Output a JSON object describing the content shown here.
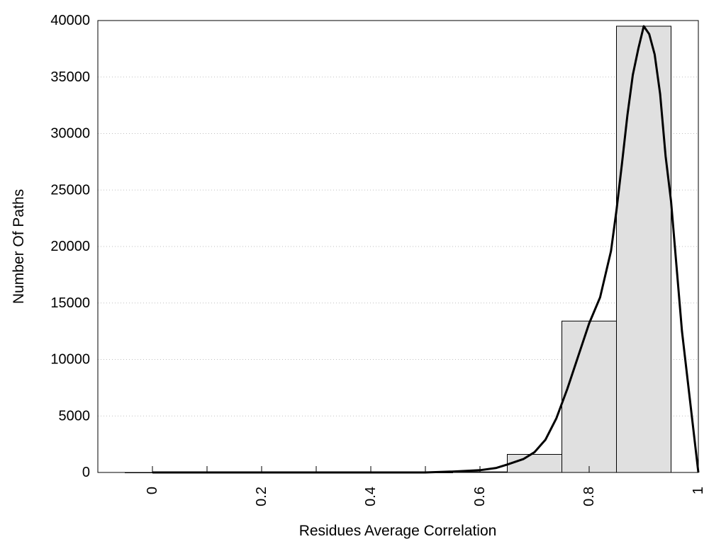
{
  "chart_data": {
    "type": "bar",
    "title": "",
    "xlabel": "Residues Average Correlation",
    "ylabel": "Number Of Paths",
    "xlim": [
      -0.1,
      1.0
    ],
    "ylim": [
      0,
      40000
    ],
    "xticks": [
      "0",
      "0.2",
      "0.4",
      "0.6",
      "0.8",
      "1"
    ],
    "xtick_values": [
      0,
      0.2,
      0.4,
      0.6,
      0.8,
      1
    ],
    "yticks": [
      "0",
      "5000",
      "10000",
      "15000",
      "20000",
      "25000",
      "30000",
      "35000",
      "40000"
    ],
    "ytick_values": [
      0,
      5000,
      10000,
      15000,
      20000,
      25000,
      30000,
      35000,
      40000
    ],
    "minor_xticks": [
      0.1,
      0.3,
      0.5
    ],
    "grid": {
      "y": true,
      "x": false,
      "style": "dotted"
    },
    "bin_width": 0.1,
    "bins": [
      {
        "center": 0.0,
        "value": 0
      },
      {
        "center": 0.1,
        "value": 0
      },
      {
        "center": 0.2,
        "value": 0
      },
      {
        "center": 0.3,
        "value": 0
      },
      {
        "center": 0.4,
        "value": 0
      },
      {
        "center": 0.5,
        "value": 0
      },
      {
        "center": 0.6,
        "value": 50
      },
      {
        "center": 0.7,
        "value": 1600
      },
      {
        "center": 0.8,
        "value": 13400
      },
      {
        "center": 0.9,
        "value": 39500
      }
    ],
    "fit_curve": {
      "x": [
        0.0,
        0.5,
        0.55,
        0.6,
        0.63,
        0.65,
        0.68,
        0.7,
        0.72,
        0.74,
        0.76,
        0.78,
        0.8,
        0.82,
        0.84,
        0.85,
        0.86,
        0.87,
        0.88,
        0.89,
        0.9,
        0.91,
        0.92,
        0.93,
        0.94,
        0.95,
        0.97,
        1.0
      ],
      "y": [
        0,
        0,
        80,
        200,
        400,
        700,
        1200,
        1800,
        2900,
        4800,
        7400,
        10300,
        13200,
        15500,
        19600,
        23200,
        27300,
        31600,
        35200,
        37500,
        39500,
        38800,
        37000,
        33500,
        28000,
        24000,
        12500,
        0
      ]
    },
    "colors": {
      "bar_fill": "#e0e0e0",
      "bar_stroke": "#000000",
      "curve": "#000000",
      "grid": "#bfbfbf"
    }
  }
}
